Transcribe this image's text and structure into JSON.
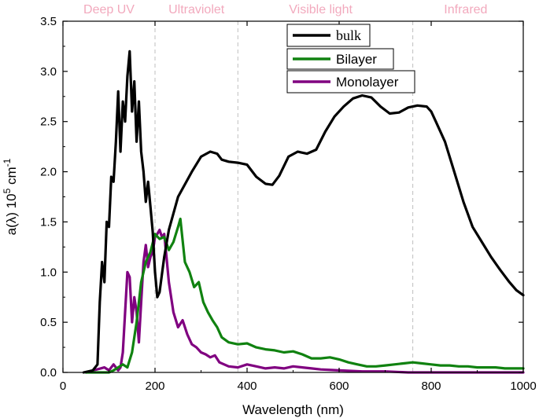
{
  "chart_data": {
    "type": "line",
    "xlabel": "Wavelength (nm)",
    "ylabel": {
      "main": "a(λ) 10",
      "sup1": "5",
      "unit": " cm",
      "sup2": "-1"
    },
    "xlim": [
      0,
      1000
    ],
    "ylim": [
      0,
      3.5
    ],
    "xticks": [
      0,
      200,
      400,
      600,
      800,
      1000
    ],
    "yticks": [
      0.0,
      0.5,
      1.0,
      1.5,
      2.0,
      2.5,
      3.0,
      3.5
    ],
    "ytick_labels": [
      "0.0",
      "0.5",
      "1.0",
      "1.5",
      "2.0",
      "2.5",
      "3.0",
      "3.5"
    ],
    "regions": [
      {
        "label": "Deep UV",
        "x_center": 100
      },
      {
        "label": "Ultraviolet",
        "x_center": 290
      },
      {
        "label": "Visible light",
        "x_center": 560
      },
      {
        "label": "Infrared",
        "x_center": 875
      }
    ],
    "region_boundaries": [
      200,
      380,
      760
    ],
    "region_label_color": "#f2a9bd",
    "boundary_color": "#bfbfbf",
    "legend_placement": "top-center",
    "series": [
      {
        "name": "bulk",
        "color": "#000000",
        "x": [
          45,
          65,
          75,
          80,
          85,
          90,
          95,
          100,
          105,
          110,
          115,
          120,
          125,
          130,
          135,
          140,
          145,
          150,
          155,
          160,
          165,
          170,
          175,
          180,
          185,
          190,
          195,
          200,
          205,
          210,
          220,
          230,
          250,
          280,
          300,
          320,
          335,
          345,
          360,
          380,
          400,
          420,
          440,
          455,
          470,
          490,
          510,
          530,
          550,
          570,
          590,
          610,
          630,
          650,
          670,
          690,
          710,
          730,
          750,
          770,
          790,
          800,
          810,
          830,
          850,
          870,
          890,
          910,
          930,
          950,
          970,
          985,
          1000
        ],
        "y": [
          0.0,
          0.02,
          0.08,
          0.7,
          1.1,
          0.9,
          1.5,
          1.45,
          1.95,
          1.9,
          2.3,
          2.8,
          2.2,
          2.7,
          2.5,
          2.95,
          3.2,
          2.6,
          2.9,
          2.3,
          2.7,
          2.2,
          2.0,
          1.7,
          1.9,
          1.65,
          1.4,
          1.0,
          0.75,
          0.8,
          1.15,
          1.42,
          1.75,
          2.0,
          2.15,
          2.2,
          2.18,
          2.12,
          2.1,
          2.09,
          2.07,
          1.95,
          1.88,
          1.87,
          1.96,
          2.15,
          2.2,
          2.18,
          2.22,
          2.4,
          2.55,
          2.65,
          2.73,
          2.76,
          2.74,
          2.65,
          2.58,
          2.59,
          2.64,
          2.66,
          2.65,
          2.6,
          2.5,
          2.3,
          2.0,
          1.7,
          1.45,
          1.3,
          1.15,
          1.02,
          0.9,
          0.82,
          0.77
        ]
      },
      {
        "name": "Bilayer",
        "color": "#108210",
        "x": [
          50,
          100,
          110,
          120,
          130,
          140,
          150,
          155,
          160,
          170,
          180,
          190,
          200,
          210,
          220,
          230,
          240,
          250,
          255,
          265,
          275,
          285,
          295,
          305,
          315,
          325,
          335,
          345,
          360,
          380,
          400,
          420,
          440,
          460,
          480,
          500,
          520,
          540,
          560,
          580,
          600,
          620,
          640,
          660,
          680,
          700,
          720,
          740,
          760,
          780,
          800,
          820,
          840,
          860,
          880,
          900,
          920,
          940,
          960,
          980,
          1000
        ],
        "y": [
          0.0,
          0.0,
          0.02,
          0.05,
          0.08,
          0.05,
          0.2,
          0.35,
          0.5,
          0.9,
          1.1,
          1.2,
          1.38,
          1.33,
          1.35,
          1.22,
          1.3,
          1.45,
          1.53,
          1.1,
          1.0,
          0.85,
          0.9,
          0.7,
          0.6,
          0.52,
          0.45,
          0.35,
          0.3,
          0.28,
          0.29,
          0.25,
          0.23,
          0.22,
          0.2,
          0.21,
          0.18,
          0.14,
          0.14,
          0.15,
          0.13,
          0.1,
          0.08,
          0.06,
          0.06,
          0.07,
          0.08,
          0.09,
          0.1,
          0.09,
          0.08,
          0.07,
          0.07,
          0.06,
          0.06,
          0.05,
          0.05,
          0.05,
          0.04,
          0.04,
          0.04
        ]
      },
      {
        "name": "Monolayer",
        "color": "#800080",
        "x": [
          50,
          90,
          100,
          110,
          120,
          125,
          130,
          135,
          140,
          145,
          150,
          155,
          160,
          165,
          170,
          175,
          180,
          185,
          190,
          195,
          200,
          205,
          210,
          215,
          220,
          225,
          230,
          240,
          250,
          260,
          270,
          280,
          290,
          300,
          310,
          320,
          330,
          340,
          360,
          380,
          400,
          420,
          440,
          460,
          480,
          500,
          520,
          540,
          560,
          600,
          650,
          700,
          750,
          800,
          850,
          900,
          950,
          1000
        ],
        "y": [
          0.0,
          0.05,
          0.02,
          0.08,
          0.02,
          0.05,
          0.2,
          0.6,
          1.0,
          0.95,
          0.5,
          0.75,
          0.6,
          0.3,
          0.7,
          1.1,
          1.27,
          1.05,
          1.15,
          1.2,
          1.35,
          1.38,
          1.42,
          1.35,
          1.38,
          1.15,
          0.9,
          0.6,
          0.45,
          0.52,
          0.38,
          0.28,
          0.25,
          0.2,
          0.18,
          0.15,
          0.17,
          0.1,
          0.06,
          0.05,
          0.08,
          0.06,
          0.04,
          0.05,
          0.04,
          0.06,
          0.05,
          0.04,
          0.03,
          0.02,
          0.01,
          0.01,
          0.0,
          0.0,
          0.0,
          0.0,
          0.0,
          0.0
        ]
      }
    ]
  }
}
